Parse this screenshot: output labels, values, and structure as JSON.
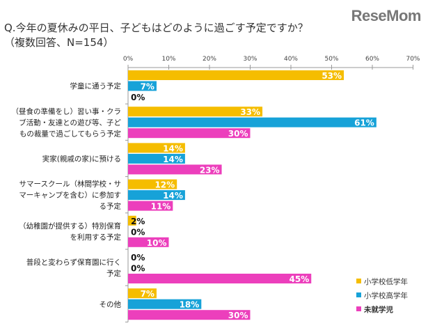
{
  "header": {
    "title": "Q.今年の夏休みの平日、子どもはどのように過ごす予定ですか？",
    "subtitle": "（複数回答、N=154）",
    "logo": "ReseMom"
  },
  "chart_data": {
    "type": "bar",
    "orientation": "horizontal",
    "title": "Q.今年の夏休みの平日、子どもはどのように過ごす予定ですか？",
    "subtitle": "（複数回答、N=154）",
    "categories": [
      [
        "学童に通う予定"
      ],
      [
        "（昼食の準備をし）習い事・クラ",
        "ブ活動・友達との遊び等、子ど",
        "もの裁量で過ごしてもらう予定"
      ],
      [
        "実家(親戚の家)に預ける"
      ],
      [
        "サマースクール（林間学校・サ",
        "マーキャンプを含む）に参加す",
        "る予定"
      ],
      [
        "（幼稚園が提供する）特別保育",
        "を利用する予定"
      ],
      [
        "普段と変わらず保育園に行く",
        "予定"
      ],
      [
        "その他"
      ]
    ],
    "series": [
      {
        "name": "小学校低学年",
        "color": "#f5bd00",
        "values": [
          53,
          33,
          14,
          12,
          2,
          0,
          7
        ]
      },
      {
        "name": "小学校高学年",
        "color": "#17a2d8",
        "values": [
          7,
          61,
          14,
          14,
          0,
          0,
          18
        ]
      },
      {
        "name": "未就学児",
        "color": "#ec3fbc",
        "values": [
          0,
          30,
          23,
          11,
          10,
          45,
          30
        ]
      }
    ],
    "xlim": [
      0,
      70
    ],
    "xticks": [
      "0%",
      "10%",
      "20%",
      "30%",
      "40%",
      "50%",
      "60%",
      "70%"
    ],
    "value_suffix": "%",
    "legend": "bottom-right",
    "grid": false
  }
}
